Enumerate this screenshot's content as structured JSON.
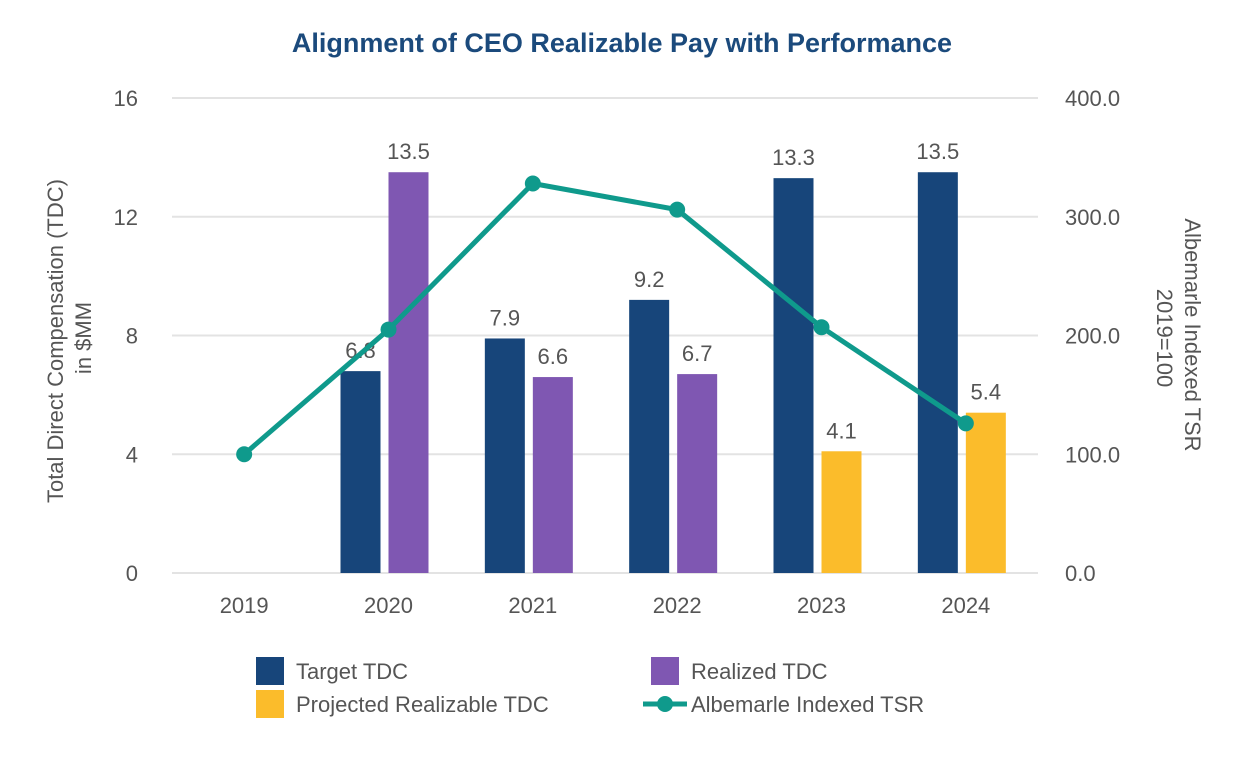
{
  "chart_data": {
    "type": "bar",
    "title": "Alignment of CEO Realizable Pay with Performance",
    "categories": [
      "2019",
      "2020",
      "2021",
      "2022",
      "2023",
      "2024"
    ],
    "ylabel": [
      "Total Direct Compensation (TDC)",
      "in $MM"
    ],
    "y2label": [
      "Albemarle Indexed TSR",
      "2019=100"
    ],
    "ylim": [
      0,
      16
    ],
    "yticks": [
      0,
      4,
      8,
      12,
      16
    ],
    "y2lim": [
      0,
      400
    ],
    "y2ticks": [
      "0.0",
      "100.0",
      "200.0",
      "300.0",
      "400.0"
    ],
    "grid": true,
    "legend_position": "bottom",
    "series": [
      {
        "name": "Target TDC",
        "kind": "bar",
        "color": "#17457a",
        "values": [
          null,
          6.8,
          7.9,
          9.2,
          13.3,
          13.5
        ],
        "labels": [
          "",
          "6.8",
          "7.9",
          "9.2",
          "13.3",
          "13.5"
        ]
      },
      {
        "name": "Realized TDC",
        "kind": "bar",
        "color": "#7f57b2",
        "values": [
          null,
          13.5,
          6.6,
          6.7,
          null,
          null
        ],
        "labels": [
          "",
          "13.5",
          "6.6",
          "6.7",
          "",
          ""
        ]
      },
      {
        "name": "Projected Realizable TDC",
        "kind": "bar",
        "color": "#fbbc2b",
        "values": [
          null,
          null,
          null,
          null,
          4.1,
          5.4
        ],
        "labels": [
          "",
          "",
          "",
          "",
          "4.1",
          "5.4"
        ]
      },
      {
        "name": "Albemarle Indexed TSR",
        "kind": "line",
        "axis": "right",
        "color": "#0f9a8c",
        "values": [
          100,
          205,
          328,
          306,
          207,
          126
        ]
      }
    ],
    "colors": {
      "title": "#1b4a7c",
      "grid": "#e3e3e3",
      "text": "#555555"
    }
  }
}
